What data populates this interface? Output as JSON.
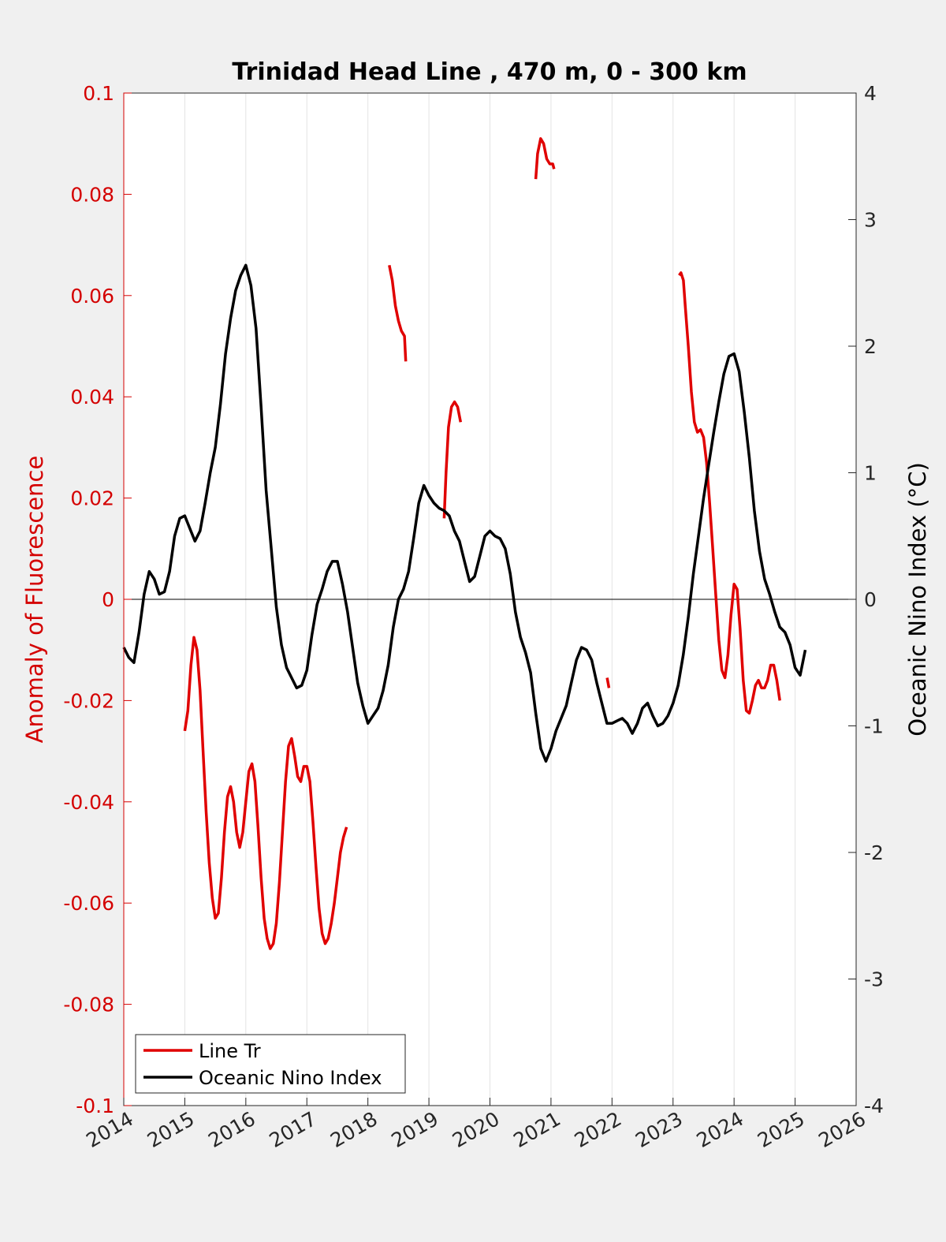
{
  "chart_data": {
    "type": "line",
    "title": "Trinidad Head Line , 470 m, 0 - 300 km",
    "colors": {
      "fluorescence": "#e00000",
      "oni": "#000000",
      "axis_left": "#d40000"
    },
    "x_axis": {
      "type": "year",
      "range": [
        2014,
        2026
      ],
      "ticks": [
        "2014",
        "2015",
        "2016",
        "2017",
        "2018",
        "2019",
        "2020",
        "2021",
        "2022",
        "2023",
        "2024",
        "2025",
        "2026"
      ],
      "grid": true
    },
    "y_left": {
      "label": "Anomaly of Fluorescence",
      "range": [
        -0.1,
        0.1
      ],
      "ticks": [
        "0.1",
        "0.08",
        "0.06",
        "0.04",
        "0.02",
        "0",
        "-0.02",
        "-0.04",
        "-0.06",
        "-0.08",
        "-0.1"
      ]
    },
    "y_right": {
      "label": "Oceanic Nino Index (°C)",
      "range": [
        -4,
        4
      ],
      "ticks": [
        "4",
        "3",
        "2",
        "1",
        "0",
        "-1",
        "-2",
        "-3",
        "-4"
      ]
    },
    "zero_line": true,
    "legend": {
      "placement": "bottom-left",
      "entries": [
        "Line Tr",
        "Oceanic Nino Index"
      ]
    },
    "series": [
      {
        "name": "Line Tr",
        "axis": "left",
        "segments": [
          [
            [
              2015.0,
              -0.026
            ],
            [
              2015.05,
              -0.022
            ],
            [
              2015.1,
              -0.013
            ],
            [
              2015.15,
              -0.0075
            ],
            [
              2015.2,
              -0.01
            ],
            [
              2015.25,
              -0.018
            ],
            [
              2015.3,
              -0.03
            ],
            [
              2015.35,
              -0.042
            ],
            [
              2015.4,
              -0.052
            ],
            [
              2015.45,
              -0.059
            ],
            [
              2015.5,
              -0.063
            ],
            [
              2015.55,
              -0.062
            ],
            [
              2015.6,
              -0.055
            ],
            [
              2015.65,
              -0.046
            ],
            [
              2015.7,
              -0.039
            ],
            [
              2015.75,
              -0.037
            ],
            [
              2015.8,
              -0.04
            ],
            [
              2015.85,
              -0.046
            ],
            [
              2015.9,
              -0.049
            ],
            [
              2015.95,
              -0.046
            ],
            [
              2016.0,
              -0.04
            ],
            [
              2016.05,
              -0.034
            ],
            [
              2016.1,
              -0.0325
            ],
            [
              2016.15,
              -0.036
            ],
            [
              2016.2,
              -0.045
            ],
            [
              2016.25,
              -0.055
            ],
            [
              2016.3,
              -0.063
            ],
            [
              2016.35,
              -0.067
            ],
            [
              2016.4,
              -0.069
            ],
            [
              2016.45,
              -0.068
            ],
            [
              2016.5,
              -0.064
            ],
            [
              2016.55,
              -0.056
            ],
            [
              2016.6,
              -0.046
            ],
            [
              2016.65,
              -0.036
            ],
            [
              2016.7,
              -0.029
            ],
            [
              2016.75,
              -0.0275
            ],
            [
              2016.8,
              -0.031
            ],
            [
              2016.85,
              -0.035
            ],
            [
              2016.9,
              -0.036
            ],
            [
              2016.95,
              -0.033
            ],
            [
              2017.0,
              -0.033
            ],
            [
              2017.05,
              -0.036
            ],
            [
              2017.1,
              -0.044
            ],
            [
              2017.15,
              -0.053
            ],
            [
              2017.2,
              -0.061
            ],
            [
              2017.25,
              -0.066
            ],
            [
              2017.3,
              -0.068
            ],
            [
              2017.35,
              -0.067
            ],
            [
              2017.4,
              -0.064
            ],
            [
              2017.45,
              -0.06
            ],
            [
              2017.5,
              -0.055
            ],
            [
              2017.55,
              -0.05
            ],
            [
              2017.6,
              -0.047
            ],
            [
              2017.65,
              -0.045
            ]
          ],
          [
            [
              2018.35,
              0.066
            ],
            [
              2018.4,
              0.063
            ],
            [
              2018.45,
              0.058
            ],
            [
              2018.5,
              0.055
            ],
            [
              2018.55,
              0.053
            ],
            [
              2018.6,
              0.052
            ],
            [
              2018.62,
              0.047
            ]
          ],
          [
            [
              2019.25,
              0.016
            ],
            [
              2019.28,
              0.025
            ],
            [
              2019.32,
              0.034
            ],
            [
              2019.37,
              0.038
            ],
            [
              2019.42,
              0.039
            ],
            [
              2019.47,
              0.038
            ],
            [
              2019.52,
              0.035
            ]
          ],
          [
            [
              2020.75,
              0.083
            ],
            [
              2020.78,
              0.088
            ],
            [
              2020.83,
              0.091
            ],
            [
              2020.88,
              0.09
            ],
            [
              2020.93,
              0.087
            ],
            [
              2020.98,
              0.086
            ],
            [
              2021.03,
              0.086
            ],
            [
              2021.05,
              0.085
            ]
          ],
          [
            [
              2021.92,
              -0.0155
            ],
            [
              2021.95,
              -0.0175
            ]
          ],
          [
            [
              2023.1,
              0.064
            ],
            [
              2023.13,
              0.0645
            ],
            [
              2023.17,
              0.063
            ],
            [
              2023.2,
              0.058
            ],
            [
              2023.25,
              0.05
            ],
            [
              2023.3,
              0.041
            ],
            [
              2023.35,
              0.035
            ],
            [
              2023.4,
              0.033
            ],
            [
              2023.45,
              0.0335
            ],
            [
              2023.5,
              0.032
            ],
            [
              2023.55,
              0.027
            ],
            [
              2023.6,
              0.019
            ],
            [
              2023.65,
              0.01
            ],
            [
              2023.7,
              0.001
            ],
            [
              2023.75,
              -0.008
            ],
            [
              2023.8,
              -0.014
            ],
            [
              2023.85,
              -0.0155
            ],
            [
              2023.9,
              -0.011
            ],
            [
              2023.95,
              -0.003
            ],
            [
              2024.0,
              0.003
            ],
            [
              2024.05,
              0.002
            ],
            [
              2024.1,
              -0.006
            ],
            [
              2024.15,
              -0.016
            ],
            [
              2024.2,
              -0.022
            ],
            [
              2024.25,
              -0.0225
            ],
            [
              2024.3,
              -0.02
            ],
            [
              2024.35,
              -0.017
            ],
            [
              2024.4,
              -0.016
            ],
            [
              2024.45,
              -0.0175
            ],
            [
              2024.5,
              -0.0175
            ],
            [
              2024.55,
              -0.016
            ],
            [
              2024.6,
              -0.013
            ],
            [
              2024.65,
              -0.013
            ],
            [
              2024.7,
              -0.016
            ],
            [
              2024.75,
              -0.02
            ]
          ]
        ]
      },
      {
        "name": "Oceanic Nino Index",
        "axis": "right",
        "segments": [
          [
            [
              2014.0,
              -0.38
            ],
            [
              2014.083,
              -0.46
            ],
            [
              2014.167,
              -0.5
            ],
            [
              2014.25,
              -0.26
            ],
            [
              2014.333,
              0.04
            ],
            [
              2014.417,
              0.22
            ],
            [
              2014.5,
              0.16
            ],
            [
              2014.583,
              0.04
            ],
            [
              2014.667,
              0.06
            ],
            [
              2014.75,
              0.22
            ],
            [
              2014.833,
              0.5
            ],
            [
              2014.917,
              0.64
            ],
            [
              2015.0,
              0.66
            ],
            [
              2015.083,
              0.56
            ],
            [
              2015.167,
              0.46
            ],
            [
              2015.25,
              0.54
            ],
            [
              2015.333,
              0.76
            ],
            [
              2015.417,
              1.0
            ],
            [
              2015.5,
              1.2
            ],
            [
              2015.583,
              1.54
            ],
            [
              2015.667,
              1.94
            ],
            [
              2015.75,
              2.22
            ],
            [
              2015.833,
              2.44
            ],
            [
              2015.917,
              2.56
            ],
            [
              2016.0,
              2.64
            ],
            [
              2016.083,
              2.48
            ],
            [
              2016.167,
              2.14
            ],
            [
              2016.25,
              1.52
            ],
            [
              2016.333,
              0.86
            ],
            [
              2016.417,
              0.4
            ],
            [
              2016.5,
              -0.06
            ],
            [
              2016.583,
              -0.36
            ],
            [
              2016.667,
              -0.54
            ],
            [
              2016.75,
              -0.62
            ],
            [
              2016.833,
              -0.7
            ],
            [
              2016.917,
              -0.68
            ],
            [
              2017.0,
              -0.56
            ],
            [
              2017.083,
              -0.28
            ],
            [
              2017.167,
              -0.04
            ],
            [
              2017.25,
              0.08
            ],
            [
              2017.333,
              0.22
            ],
            [
              2017.417,
              0.3
            ],
            [
              2017.5,
              0.3
            ],
            [
              2017.583,
              0.12
            ],
            [
              2017.667,
              -0.1
            ],
            [
              2017.75,
              -0.38
            ],
            [
              2017.833,
              -0.66
            ],
            [
              2017.917,
              -0.84
            ],
            [
              2018.0,
              -0.98
            ],
            [
              2018.083,
              -0.92
            ],
            [
              2018.167,
              -0.86
            ],
            [
              2018.25,
              -0.72
            ],
            [
              2018.333,
              -0.52
            ],
            [
              2018.417,
              -0.22
            ],
            [
              2018.5,
              0.0
            ],
            [
              2018.583,
              0.08
            ],
            [
              2018.667,
              0.22
            ],
            [
              2018.75,
              0.48
            ],
            [
              2018.833,
              0.76
            ],
            [
              2018.917,
              0.9
            ],
            [
              2019.0,
              0.82
            ],
            [
              2019.083,
              0.76
            ],
            [
              2019.167,
              0.72
            ],
            [
              2019.25,
              0.7
            ],
            [
              2019.333,
              0.66
            ],
            [
              2019.417,
              0.54
            ],
            [
              2019.5,
              0.46
            ],
            [
              2019.583,
              0.3
            ],
            [
              2019.667,
              0.14
            ],
            [
              2019.75,
              0.18
            ],
            [
              2019.833,
              0.34
            ],
            [
              2019.917,
              0.5
            ],
            [
              2020.0,
              0.54
            ],
            [
              2020.083,
              0.5
            ],
            [
              2020.167,
              0.48
            ],
            [
              2020.25,
              0.4
            ],
            [
              2020.333,
              0.2
            ],
            [
              2020.417,
              -0.1
            ],
            [
              2020.5,
              -0.3
            ],
            [
              2020.583,
              -0.42
            ],
            [
              2020.667,
              -0.58
            ],
            [
              2020.75,
              -0.9
            ],
            [
              2020.833,
              -1.18
            ],
            [
              2020.917,
              -1.28
            ],
            [
              2021.0,
              -1.18
            ],
            [
              2021.083,
              -1.04
            ],
            [
              2021.167,
              -0.94
            ],
            [
              2021.25,
              -0.84
            ],
            [
              2021.333,
              -0.66
            ],
            [
              2021.417,
              -0.48
            ],
            [
              2021.5,
              -0.38
            ],
            [
              2021.583,
              -0.4
            ],
            [
              2021.667,
              -0.48
            ],
            [
              2021.75,
              -0.66
            ],
            [
              2021.833,
              -0.82
            ],
            [
              2021.917,
              -0.98
            ],
            [
              2022.0,
              -0.98
            ],
            [
              2022.083,
              -0.96
            ],
            [
              2022.167,
              -0.94
            ],
            [
              2022.25,
              -0.98
            ],
            [
              2022.333,
              -1.06
            ],
            [
              2022.417,
              -0.98
            ],
            [
              2022.5,
              -0.86
            ],
            [
              2022.583,
              -0.82
            ],
            [
              2022.667,
              -0.92
            ],
            [
              2022.75,
              -1.0
            ],
            [
              2022.833,
              -0.98
            ],
            [
              2022.917,
              -0.92
            ],
            [
              2023.0,
              -0.82
            ],
            [
              2023.083,
              -0.68
            ],
            [
              2023.167,
              -0.44
            ],
            [
              2023.25,
              -0.14
            ],
            [
              2023.333,
              0.2
            ],
            [
              2023.417,
              0.5
            ],
            [
              2023.5,
              0.8
            ],
            [
              2023.583,
              1.06
            ],
            [
              2023.667,
              1.32
            ],
            [
              2023.75,
              1.56
            ],
            [
              2023.833,
              1.78
            ],
            [
              2023.917,
              1.92
            ],
            [
              2024.0,
              1.94
            ],
            [
              2024.083,
              1.8
            ],
            [
              2024.167,
              1.48
            ],
            [
              2024.25,
              1.12
            ],
            [
              2024.333,
              0.7
            ],
            [
              2024.417,
              0.38
            ],
            [
              2024.5,
              0.16
            ],
            [
              2024.583,
              0.04
            ],
            [
              2024.667,
              -0.1
            ],
            [
              2024.75,
              -0.22
            ],
            [
              2024.833,
              -0.26
            ],
            [
              2024.917,
              -0.36
            ],
            [
              2025.0,
              -0.54
            ],
            [
              2025.083,
              -0.6
            ],
            [
              2025.167,
              -0.4
            ]
          ]
        ]
      }
    ]
  }
}
